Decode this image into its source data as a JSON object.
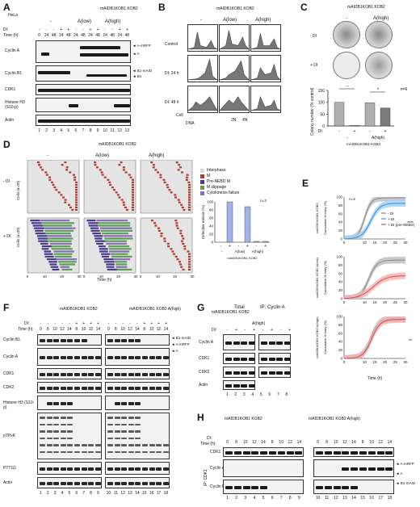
{
  "panels": {
    "A": "A",
    "B": "B",
    "C": "C",
    "D": "D",
    "E": "E",
    "F": "F",
    "G": "G",
    "H": "H"
  },
  "panelA": {
    "cell_line": "HeLa",
    "genotype": "mAIDB1KOB1 KOB2",
    "groups": [
      "-",
      "A(low)",
      "A(high)"
    ],
    "di_row": "DI:",
    "di_signs": [
      "-",
      "-",
      "-",
      "+",
      "+",
      "-",
      "-",
      "+",
      "+",
      "-",
      "-",
      "+",
      "+"
    ],
    "time_row": "Time (h):",
    "times": [
      "0",
      "24",
      "48",
      "24",
      "48",
      "24",
      "48",
      "24",
      "48",
      "24",
      "48",
      "24",
      "48"
    ],
    "rows": [
      "Cyclin A",
      "Cyclin B1",
      "CDK1",
      "Histone H3 (S10-p)",
      "Actin"
    ],
    "right_markers": [
      "70",
      "55",
      "70",
      "55",
      "35",
      "15",
      "40"
    ],
    "arrows": [
      "◄ A-mRFP",
      "◄ A",
      "◄ B1-mAID",
      "◄ B1"
    ],
    "lanes": [
      "1",
      "2",
      "3",
      "4",
      "5",
      "6",
      "7",
      "8",
      "9",
      "10",
      "11",
      "12",
      "13"
    ]
  },
  "panelB": {
    "genotype": "mAIDB1KOB1 KOB2",
    "cols": [
      "-",
      "A(low)",
      "A(high)"
    ],
    "rows": [
      "Control",
      "DI: 24 h",
      "DI: 48 h"
    ],
    "xticks": [
      "2N",
      "4N"
    ],
    "ylabel": "Cell",
    "xlabel": "DNA"
  },
  "panelC": {
    "genotype": "mAIDB1KOB1 KOB2",
    "cols": [
      "-",
      "A(high)"
    ],
    "rows": [
      "- DI",
      "+ DI"
    ],
    "ylabel": "Colony number (% control)",
    "yticks": [
      "0",
      "50",
      "100",
      "150"
    ],
    "sig": [
      "**",
      "*"
    ],
    "n": "n=6",
    "di_row": "DI:",
    "di_signs": [
      "-",
      "+",
      "-",
      "+"
    ],
    "group_labels": [
      "-",
      "A(high)"
    ],
    "bars": [
      100,
      2,
      98,
      76
    ],
    "bar_colors": [
      "#b0b0b0",
      "#3a5fcd",
      "#b0b0b0",
      "#7b7b7b"
    ]
  },
  "panelD": {
    "genotype": "mAIDB1KOB1 KOB2",
    "cols": [
      "-",
      "A(low)",
      "A(high)"
    ],
    "rows": [
      "- DI",
      "+ DI"
    ],
    "row_ylabels": [
      "Cells (n=20)",
      "Cells (n=20)"
    ],
    "xlabel": "Time (h)",
    "xticks": [
      "0",
      "10",
      "20",
      "30"
    ],
    "legend": [
      {
        "label": "Interphase",
        "color": "#d8d8d8"
      },
      {
        "label": "M",
        "color": "#b03a2e"
      },
      {
        "label": "Pre-NEBD M",
        "color": "#4a3a8c"
      },
      {
        "label": "M slippage",
        "color": "#5c9e55"
      },
      {
        "label": "Cytokinesis failure",
        "color": "#8a6bbd"
      }
    ],
    "bar_chart": {
      "ylabel": "Defective mitosis (%)",
      "yticks": [
        "0",
        "20",
        "40",
        "60",
        "80",
        "100"
      ],
      "n": "n=3",
      "di_signs": [
        "-",
        "+",
        "-",
        "+",
        "-",
        "+"
      ],
      "groups": [
        "-",
        "A(low)",
        "A(high)"
      ],
      "values": [
        0,
        100,
        0,
        88,
        2,
        2
      ],
      "footer": "mAIDB1KOB1 KOB2"
    }
  },
  "panelE": {
    "legend": [
      "- DI",
      "+ DI",
      "+ DI (pre-NEBD)"
    ],
    "n": "n=3",
    "sig_top": "****",
    "sig_bottom": "**",
    "genotypes": [
      "mAIDB1KOB1 KOB2",
      "mAIDB1KOB1 KOB2 A(low)",
      "mAIDB1KOB1 KOB2 A(high)"
    ],
    "ylabel": "Cumulative M entry (%)",
    "yticks": [
      "0",
      "20",
      "40",
      "60",
      "80",
      "100"
    ],
    "xticks": [
      "0",
      "10",
      "15",
      "20",
      "25",
      "30"
    ],
    "xlabel": "Time (h)"
  },
  "panelF": {
    "left_genotype": "mAIDB1KOB1 KOB2",
    "right_genotype": "mAIDB1KOB1 KOB2 A(high)",
    "di_row": "DI:",
    "time_row": "Time (h):",
    "times": [
      "0",
      "8",
      "10",
      "12",
      "14",
      "8",
      "10",
      "12",
      "14"
    ],
    "di_signs": [
      "-",
      "-",
      "-",
      "-",
      "-",
      "+",
      "+",
      "+",
      "+"
    ],
    "rows": [
      "Cyclin B1",
      "Cyclin A",
      "CDK1",
      "CDK2",
      "Histone H3 (S10-p)",
      "pTPxK",
      "PTTG1",
      "Actin"
    ],
    "left_lanes": [
      "1",
      "2",
      "3",
      "4",
      "5",
      "6",
      "7",
      "8",
      "9"
    ],
    "right_lanes": [
      "10",
      "11",
      "12",
      "13",
      "14",
      "15",
      "16",
      "17",
      "18"
    ],
    "arrows": [
      "◄ B1-mAID",
      "◄ A-mRFP",
      "◄ A"
    ],
    "markers": [
      "70",
      "55",
      "70",
      "55",
      "35",
      "35",
      "15",
      "180",
      "130",
      "100",
      "70",
      "55",
      "40",
      "35",
      "25",
      "40"
    ]
  },
  "panelG": {
    "genotype_left": "mAIDB1KOB1 KOB2",
    "genotype_right": "A(high)",
    "total": "Total",
    "ip": "IP: Cyclin A",
    "di_row": "DI:",
    "di_signs": [
      "-",
      "+",
      "-",
      "+",
      "-",
      "+",
      "-",
      "+"
    ],
    "rows": [
      "Cyclin A",
      "CDK1",
      "CDK2",
      "Actin"
    ],
    "arrows": [
      "◄ A-mRFP",
      "◄ A"
    ],
    "lanes": [
      "1",
      "2",
      "3",
      "4",
      "5",
      "6",
      "7",
      "8"
    ]
  },
  "panelH": {
    "left_genotype": "mAIDB1KOB1 KOB2",
    "right_genotype": "mAIDB1KOB1 KOB2 A(high)",
    "di_row": "DI:",
    "time_row": "Time (h):",
    "times": [
      "0",
      "8",
      "10",
      "12",
      "14",
      "8",
      "10",
      "12",
      "14"
    ],
    "ip": "IP: CDK1",
    "rows": [
      "CDK1",
      "Cyclin A",
      "Cyclin B1"
    ],
    "arrows": [
      "◄ A-mRFP",
      "◄ A",
      "◄ B1-mAID"
    ],
    "left_lanes": [
      "1",
      "2",
      "3",
      "4",
      "5",
      "6",
      "7",
      "8",
      "9"
    ],
    "right_lanes": [
      "10",
      "11",
      "12",
      "13",
      "14",
      "15",
      "16",
      "17",
      "18"
    ]
  }
}
